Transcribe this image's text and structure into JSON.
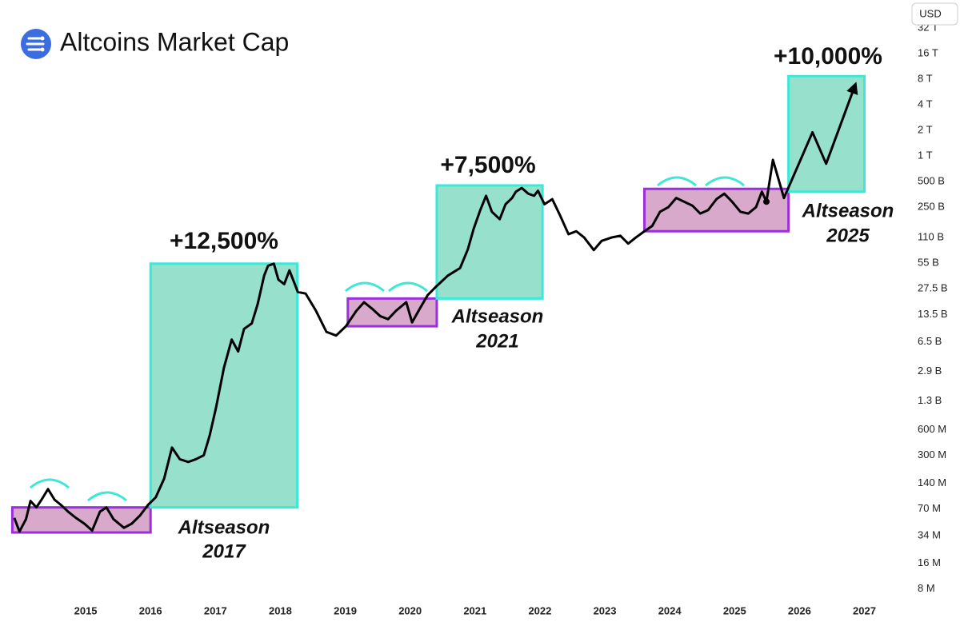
{
  "chart_data": {
    "type": "line",
    "title": "Altcoins Market Cap",
    "currency": "USD",
    "log_scale": true,
    "grid": false,
    "xlim": [
      2013.68,
      2027.61
    ],
    "xticks": [
      2015,
      2016,
      2017,
      2018,
      2019,
      2020,
      2021,
      2022,
      2023,
      2024,
      2025,
      2026,
      2027
    ],
    "ylim": [
      6000000,
      68500000000000
    ],
    "yticks": [
      {
        "value": 32000000000000,
        "label": "32 T"
      },
      {
        "value": 16000000000000,
        "label": "16 T"
      },
      {
        "value": 8000000000000,
        "label": "8 T"
      },
      {
        "value": 4000000000000,
        "label": "4 T"
      },
      {
        "value": 2000000000000,
        "label": "2 T"
      },
      {
        "value": 1000000000000,
        "label": "1 T"
      },
      {
        "value": 500000000000,
        "label": "500 B"
      },
      {
        "value": 250000000000,
        "label": "250 B"
      },
      {
        "value": 110000000000,
        "label": "110 B"
      },
      {
        "value": 55000000000,
        "label": "55 B"
      },
      {
        "value": 27500000000,
        "label": "27.5 B"
      },
      {
        "value": 13500000000,
        "label": "13.5 B"
      },
      {
        "value": 6500000000,
        "label": "6.5 B"
      },
      {
        "value": 2900000000,
        "label": "2.9 B"
      },
      {
        "value": 1300000000,
        "label": "1.3 B"
      },
      {
        "value": 600000000,
        "label": "600 M"
      },
      {
        "value": 300000000,
        "label": "300 M"
      },
      {
        "value": 140000000,
        "label": "140 M"
      },
      {
        "value": 70000000,
        "label": "70 M"
      },
      {
        "value": 34000000,
        "label": "34 M"
      },
      {
        "value": 16000000,
        "label": "16 M"
      },
      {
        "value": 8000000,
        "label": "8 M"
      }
    ],
    "series": [
      {
        "color": "#000000",
        "x": [
          2013.9,
          2013.98,
          2014.08,
          2014.15,
          2014.24,
          2014.32,
          2014.42,
          2014.52,
          2014.62,
          2014.73,
          2014.85,
          2014.98,
          2015.1,
          2015.22,
          2015.32,
          2015.43,
          2015.59,
          2015.71,
          2015.84,
          2015.96,
          2016.08,
          2016.21,
          2016.33,
          2016.45,
          2016.58,
          2016.7,
          2016.82,
          2016.91,
          2017.01,
          2017.13,
          2017.25,
          2017.35,
          2017.44,
          2017.56,
          2017.65,
          2017.75,
          2017.81,
          2017.9,
          2017.97,
          2018.06,
          2018.14,
          2018.27,
          2018.39,
          2018.55,
          2018.71,
          2018.86,
          2019.01,
          2019.17,
          2019.29,
          2019.41,
          2019.54,
          2019.66,
          2019.78,
          2019.94,
          2020.03,
          2020.15,
          2020.27,
          2020.4,
          2020.58,
          2020.77,
          2020.89,
          2020.98,
          2021.08,
          2021.17,
          2021.26,
          2021.38,
          2021.47,
          2021.57,
          2021.63,
          2021.72,
          2021.82,
          2021.91,
          2021.97,
          2022.07,
          2022.19,
          2022.31,
          2022.44,
          2022.56,
          2022.68,
          2022.83,
          2022.95,
          2023.11,
          2023.24,
          2023.36,
          2023.48,
          2023.61,
          2023.73,
          2023.85,
          2023.98,
          2024.1,
          2024.22,
          2024.35,
          2024.47,
          2024.59,
          2024.72,
          2024.84,
          2024.96,
          2025.09,
          2025.21,
          2025.33,
          2025.42,
          2025.49
        ],
        "values": [
          55000000.0,
          38000000.0,
          53000000.0,
          87000000.0,
          73000000.0,
          90000000.0,
          120000000.0,
          90000000.0,
          78000000.0,
          65000000.0,
          55000000.0,
          47000000.0,
          39000000.0,
          65000000.0,
          73000000.0,
          53000000.0,
          42000000.0,
          47000000.0,
          59000000.0,
          78000000.0,
          96000000.0,
          160000000.0,
          370000000.0,
          270000000.0,
          250000000.0,
          270000000.0,
          300000000.0,
          510000000.0,
          1100000000.0,
          3200000000.0,
          6900000000.0,
          5000000000.0,
          9200000000.0,
          10700000000.0,
          18000000000.0,
          39000000000.0,
          51000000000.0,
          54000000000.0,
          35000000000.0,
          31000000000.0,
          45000000000.0,
          25000000000.0,
          24000000000.0,
          15000000000.0,
          8500000000.0,
          7700000000.0,
          9900000000.0,
          15000000000.0,
          19000000000.0,
          16000000000.0,
          13000000000.0,
          12000000000.0,
          15000000000.0,
          19000000000.0,
          11000000000.0,
          16000000000.0,
          23000000000.0,
          29000000000.0,
          39000000000.0,
          48000000000.0,
          80000000000.0,
          140000000000.0,
          230000000000.0,
          340000000000.0,
          220000000000.0,
          180000000000.0,
          270000000000.0,
          320000000000.0,
          380000000000.0,
          420000000000.0,
          360000000000.0,
          340000000000.0,
          390000000000.0,
          270000000000.0,
          310000000000.0,
          200000000000.0,
          120000000000.0,
          130000000000.0,
          110000000000.0,
          78000000000.0,
          100000000000.0,
          110000000000.0,
          115000000000.0,
          93000000000.0,
          110000000000.0,
          130000000000.0,
          150000000000.0,
          220000000000.0,
          250000000000.0,
          320000000000.0,
          290000000000.0,
          260000000000.0,
          210000000000.0,
          230000000000.0,
          310000000000.0,
          360000000000.0,
          290000000000.0,
          220000000000.0,
          210000000000.0,
          250000000000.0,
          380000000000.0,
          290000000000.0
        ]
      },
      {
        "color": "#000000",
        "arrow": true,
        "x": [
          2025.49,
          2025.59,
          2025.76,
          2026.2,
          2026.41,
          2026.85
        ],
        "values": [
          290000000000.0,
          900000000000.0,
          320000000000.0,
          1900000000000.0,
          810000000000.0,
          6600000000000.0
        ]
      }
    ],
    "ranges": [
      {
        "x": [
          2013.87,
          2016.0
        ],
        "y": [
          37000000.0,
          73000000.0
        ]
      },
      {
        "x": [
          2019.04,
          2020.41
        ],
        "y": [
          9900000000.0,
          21000000000.0
        ]
      },
      {
        "x": [
          2023.61,
          2025.83
        ],
        "y": [
          130000000000.0,
          410000000000.0
        ]
      }
    ],
    "seasons": [
      {
        "x": [
          2016.0,
          2018.26
        ],
        "y": [
          73000000.0,
          54000000000.0
        ],
        "gain": "+12,500%",
        "label": "Altseason",
        "year": "2017"
      },
      {
        "x": [
          2020.41,
          2022.04
        ],
        "y": [
          21000000000.0,
          450000000000.0
        ],
        "gain": "+7,500%",
        "label": "Altseason",
        "year": "2021"
      },
      {
        "x": [
          2025.83,
          2027.0
        ],
        "y": [
          380000000000.0,
          8700000000000.0
        ],
        "gain": "+10,000%",
        "label": "Altseason",
        "year": "2025"
      }
    ]
  }
}
